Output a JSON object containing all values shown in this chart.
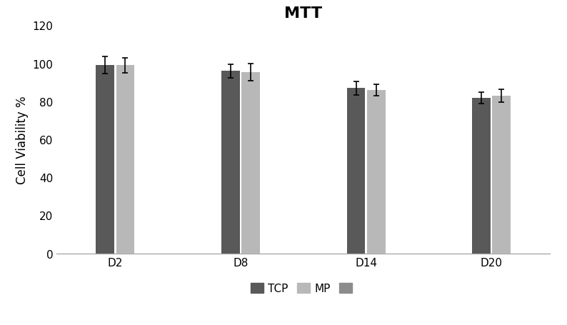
{
  "title": "MTT",
  "ylabel": "Cell Viability %",
  "categories": [
    "D2",
    "D8",
    "D14",
    "D20"
  ],
  "series": [
    {
      "label": "TCP",
      "values": [
        99.0,
        96.0,
        87.0,
        82.0
      ],
      "errors": [
        4.5,
        3.5,
        3.5,
        3.0
      ],
      "color": "#595959"
    },
    {
      "label": "MP",
      "values": [
        99.0,
        95.5,
        86.0,
        83.0
      ],
      "errors": [
        4.0,
        4.5,
        3.0,
        3.5
      ],
      "color": "#b8b8b8"
    }
  ],
  "legend_extra_color": "#8c8c8c",
  "ylim": [
    0,
    120
  ],
  "yticks": [
    0,
    20,
    40,
    60,
    80,
    100,
    120
  ],
  "bar_width": 0.22,
  "x_positions": [
    1.0,
    2.5,
    4.0,
    5.5
  ],
  "background_color": "#ffffff",
  "title_fontsize": 16,
  "label_fontsize": 12,
  "tick_fontsize": 11,
  "legend_fontsize": 11
}
